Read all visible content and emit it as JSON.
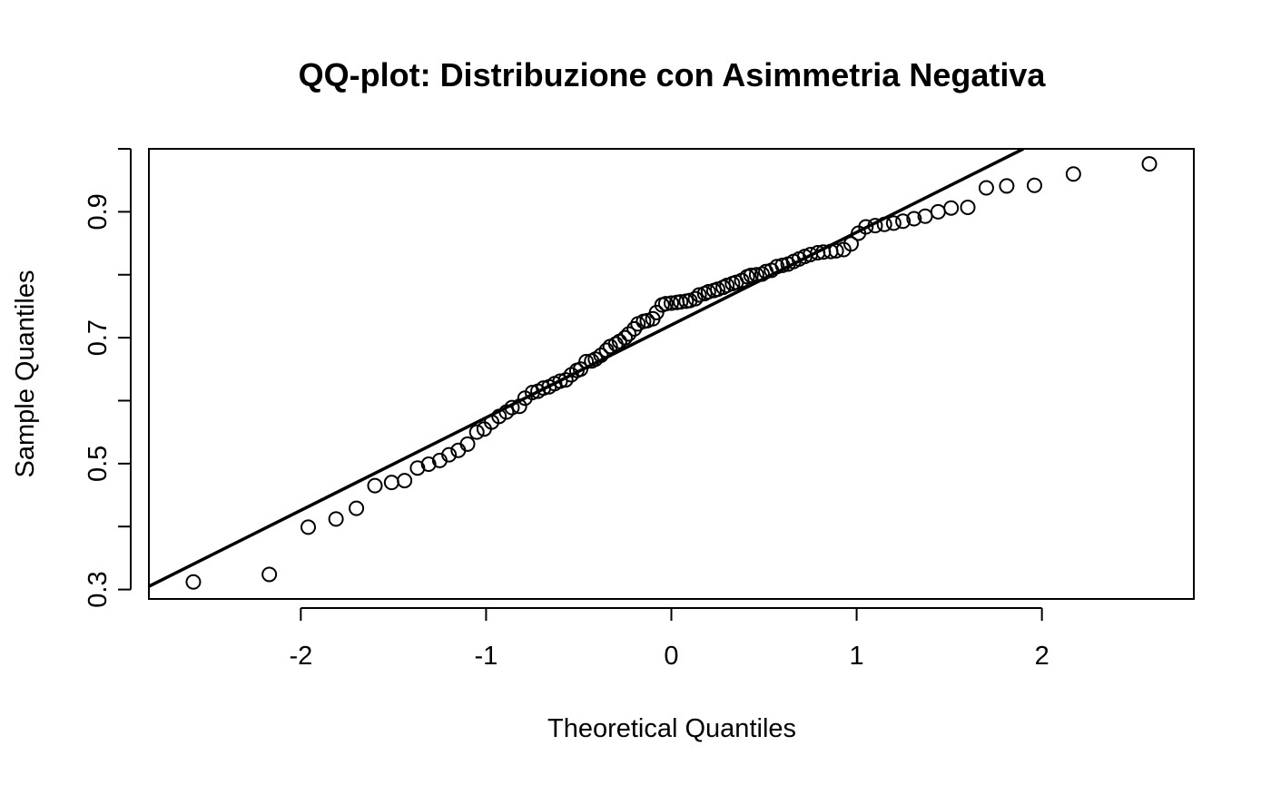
{
  "chart_data": {
    "type": "scatter",
    "title": "QQ-plot: Distribuzione con Asimmetria Negativa",
    "xlabel": "Theoretical Quantiles",
    "ylabel": "Sample Quantiles",
    "xlim": [
      -2.82,
      2.82
    ],
    "ylim": [
      0.285,
      1.0
    ],
    "x_ticks": [
      -2,
      -1,
      0,
      1,
      2
    ],
    "x_tick_labels": [
      "-2",
      "-1",
      "0",
      "1",
      "2"
    ],
    "y_ticks": [
      0.3,
      0.4,
      0.5,
      0.6,
      0.7,
      0.8,
      0.9,
      1.0
    ],
    "y_tick_labels": [
      "0.3",
      "",
      "0.5",
      "",
      "0.7",
      "",
      "0.9",
      ""
    ],
    "grid": false,
    "legend": "none",
    "colors": {
      "points": "#000000",
      "line": "#000000",
      "background": "#ffffff"
    },
    "reference_line": {
      "x": [
        -2.82,
        1.9
      ],
      "y": [
        0.305,
        1.0
      ]
    },
    "points": {
      "x": [
        -2.58,
        -2.17,
        -1.96,
        -1.81,
        -1.7,
        -1.6,
        -1.51,
        -1.44,
        -1.37,
        -1.31,
        -1.25,
        -1.2,
        -1.15,
        -1.1,
        -1.05,
        -1.01,
        -0.97,
        -0.93,
        -0.89,
        -0.86,
        -0.82,
        -0.79,
        -0.75,
        -0.72,
        -0.69,
        -0.66,
        -0.63,
        -0.6,
        -0.57,
        -0.54,
        -0.51,
        -0.49,
        -0.46,
        -0.43,
        -0.41,
        -0.38,
        -0.35,
        -0.33,
        -0.3,
        -0.28,
        -0.25,
        -0.23,
        -0.2,
        -0.18,
        -0.15,
        -0.13,
        -0.1,
        -0.08,
        -0.05,
        -0.03,
        0.0,
        0.03,
        0.05,
        0.08,
        0.1,
        0.13,
        0.15,
        0.18,
        0.2,
        0.23,
        0.25,
        0.28,
        0.3,
        0.33,
        0.35,
        0.38,
        0.41,
        0.43,
        0.46,
        0.49,
        0.51,
        0.54,
        0.57,
        0.6,
        0.63,
        0.66,
        0.69,
        0.72,
        0.75,
        0.79,
        0.82,
        0.86,
        0.89,
        0.93,
        0.97,
        1.01,
        1.05,
        1.1,
        1.15,
        1.2,
        1.25,
        1.31,
        1.37,
        1.44,
        1.51,
        1.6,
        1.7,
        1.81,
        1.96,
        2.17,
        2.58
      ],
      "y": [
        0.312,
        0.324,
        0.399,
        0.412,
        0.429,
        0.465,
        0.47,
        0.473,
        0.493,
        0.499,
        0.505,
        0.514,
        0.521,
        0.531,
        0.55,
        0.555,
        0.566,
        0.575,
        0.582,
        0.589,
        0.591,
        0.604,
        0.613,
        0.615,
        0.62,
        0.622,
        0.627,
        0.631,
        0.633,
        0.641,
        0.648,
        0.65,
        0.662,
        0.663,
        0.666,
        0.672,
        0.68,
        0.686,
        0.69,
        0.694,
        0.7,
        0.706,
        0.714,
        0.722,
        0.726,
        0.727,
        0.73,
        0.74,
        0.752,
        0.754,
        0.755,
        0.756,
        0.757,
        0.758,
        0.759,
        0.762,
        0.768,
        0.77,
        0.773,
        0.775,
        0.777,
        0.78,
        0.783,
        0.786,
        0.788,
        0.791,
        0.797,
        0.799,
        0.8,
        0.801,
        0.805,
        0.807,
        0.813,
        0.815,
        0.817,
        0.821,
        0.825,
        0.829,
        0.832,
        0.835,
        0.836,
        0.837,
        0.838,
        0.84,
        0.849,
        0.866,
        0.876,
        0.878,
        0.88,
        0.882,
        0.885,
        0.889,
        0.893,
        0.9,
        0.906,
        0.907,
        0.938,
        0.941,
        0.942,
        0.96,
        0.976
      ]
    }
  }
}
